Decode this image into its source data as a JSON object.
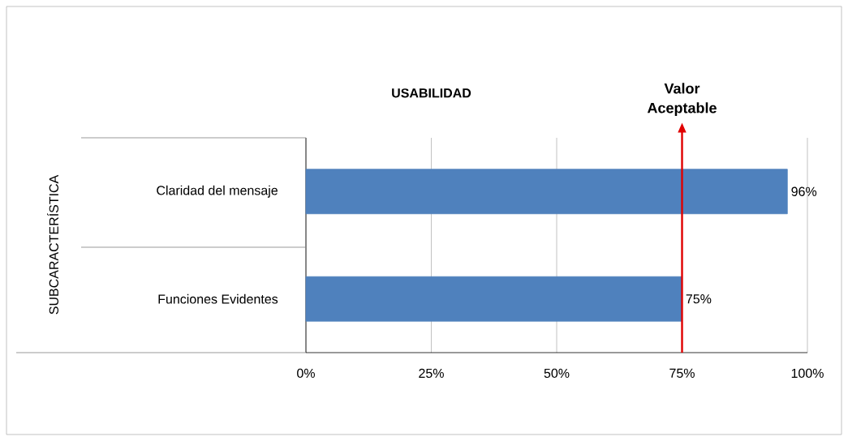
{
  "chart_data": {
    "type": "bar",
    "orientation": "horizontal",
    "title": "USABILIDAD",
    "annotations": [
      "SUBCARACTERÍSTICA"
    ],
    "categories": [
      "Claridad del mensaje",
      "Funciones Evidentes"
    ],
    "values": [
      96,
      75
    ],
    "color": "#4f81bd",
    "value_labels": [
      "96%",
      "75%"
    ],
    "xlim": [
      0,
      100
    ],
    "xticks": [
      {
        "value": 0,
        "label": "0%"
      },
      {
        "value": 25,
        "label": "25%"
      },
      {
        "value": 50,
        "label": "50%"
      },
      {
        "value": 75,
        "label": "75%"
      },
      {
        "value": 100,
        "label": "100%"
      }
    ],
    "grid": "x",
    "ref_lines": [
      {
        "axis": "x",
        "value": 75,
        "label": "Valor Aceptable",
        "color": "#e00000"
      }
    ]
  }
}
